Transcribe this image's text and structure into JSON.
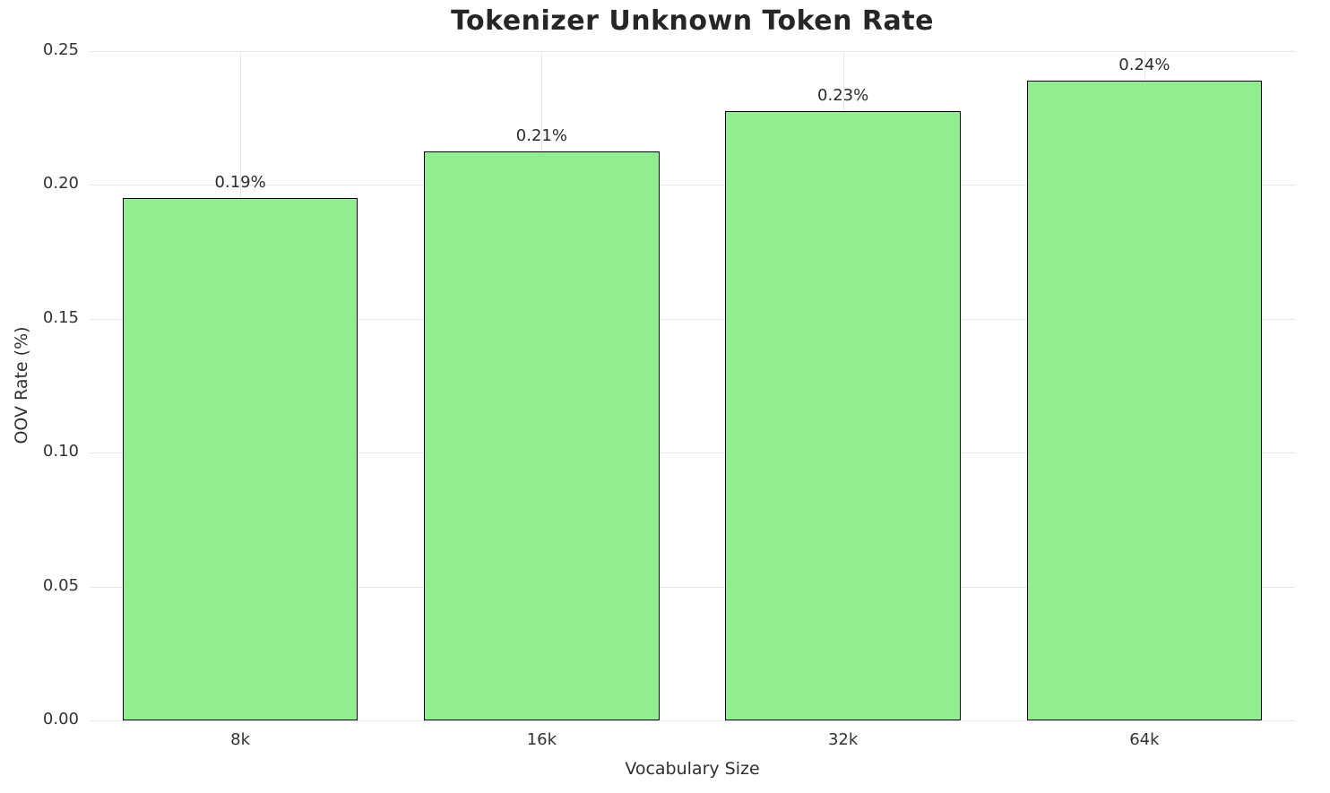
{
  "chart_data": {
    "type": "bar",
    "title": "Tokenizer Unknown Token Rate",
    "xlabel": "Vocabulary Size",
    "ylabel": "OOV Rate (%)",
    "categories": [
      "8k",
      "16k",
      "32k",
      "64k"
    ],
    "values": [
      0.195,
      0.2125,
      0.2275,
      0.239
    ],
    "bar_labels": [
      "0.19%",
      "0.21%",
      "0.23%",
      "0.24%"
    ],
    "ylim": [
      0,
      0.25
    ],
    "yticks": [
      "0.00",
      "0.05",
      "0.10",
      "0.15",
      "0.20",
      "0.25"
    ],
    "grid": true,
    "legend": "none",
    "bar_color": "#90EE90",
    "bar_edge_color": "#000000",
    "bar_width_fraction": 0.78
  }
}
